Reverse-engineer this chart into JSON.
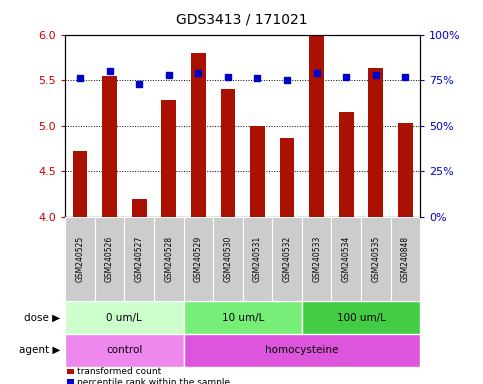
{
  "title": "GDS3413 / 171021",
  "samples": [
    "GSM240525",
    "GSM240526",
    "GSM240527",
    "GSM240528",
    "GSM240529",
    "GSM240530",
    "GSM240531",
    "GSM240532",
    "GSM240533",
    "GSM240534",
    "GSM240535",
    "GSM240848"
  ],
  "transformed_count": [
    4.72,
    5.55,
    4.2,
    5.28,
    5.8,
    5.4,
    5.0,
    4.87,
    5.98,
    5.15,
    5.63,
    5.03
  ],
  "percentile_rank": [
    76,
    80,
    73,
    78,
    79,
    77,
    76,
    75,
    79,
    77,
    78,
    77
  ],
  "bar_color": "#aa1100",
  "dot_color": "#0000cc",
  "ylim_left": [
    4.0,
    6.0
  ],
  "ylim_right": [
    0,
    100
  ],
  "yticks_left": [
    4.0,
    4.5,
    5.0,
    5.5,
    6.0
  ],
  "yticks_right": [
    0,
    25,
    50,
    75,
    100
  ],
  "ytick_labels_right": [
    "0%",
    "25%",
    "50%",
    "75%",
    "100%"
  ],
  "dose_groups": [
    {
      "label": "0 um/L",
      "start": 0,
      "end": 4,
      "color": "#ccffcc"
    },
    {
      "label": "10 um/L",
      "start": 4,
      "end": 8,
      "color": "#77ee77"
    },
    {
      "label": "100 um/L",
      "start": 8,
      "end": 12,
      "color": "#44cc44"
    }
  ],
  "agent_groups": [
    {
      "label": "control",
      "start": 0,
      "end": 4,
      "color": "#ee88ee"
    },
    {
      "label": "homocysteine",
      "start": 4,
      "end": 12,
      "color": "#dd55dd"
    }
  ],
  "dose_label": "dose",
  "agent_label": "agent",
  "legend_items": [
    {
      "label": "transformed count",
      "color": "#aa1100"
    },
    {
      "label": "percentile rank within the sample",
      "color": "#0000cc"
    }
  ],
  "grid_color": "black",
  "tick_color_left": "#cc0000",
  "tick_color_right": "#0000cc",
  "bar_width": 0.5,
  "sample_box_color": "#cccccc",
  "bg_color": "#ffffff",
  "n_samples": 12
}
